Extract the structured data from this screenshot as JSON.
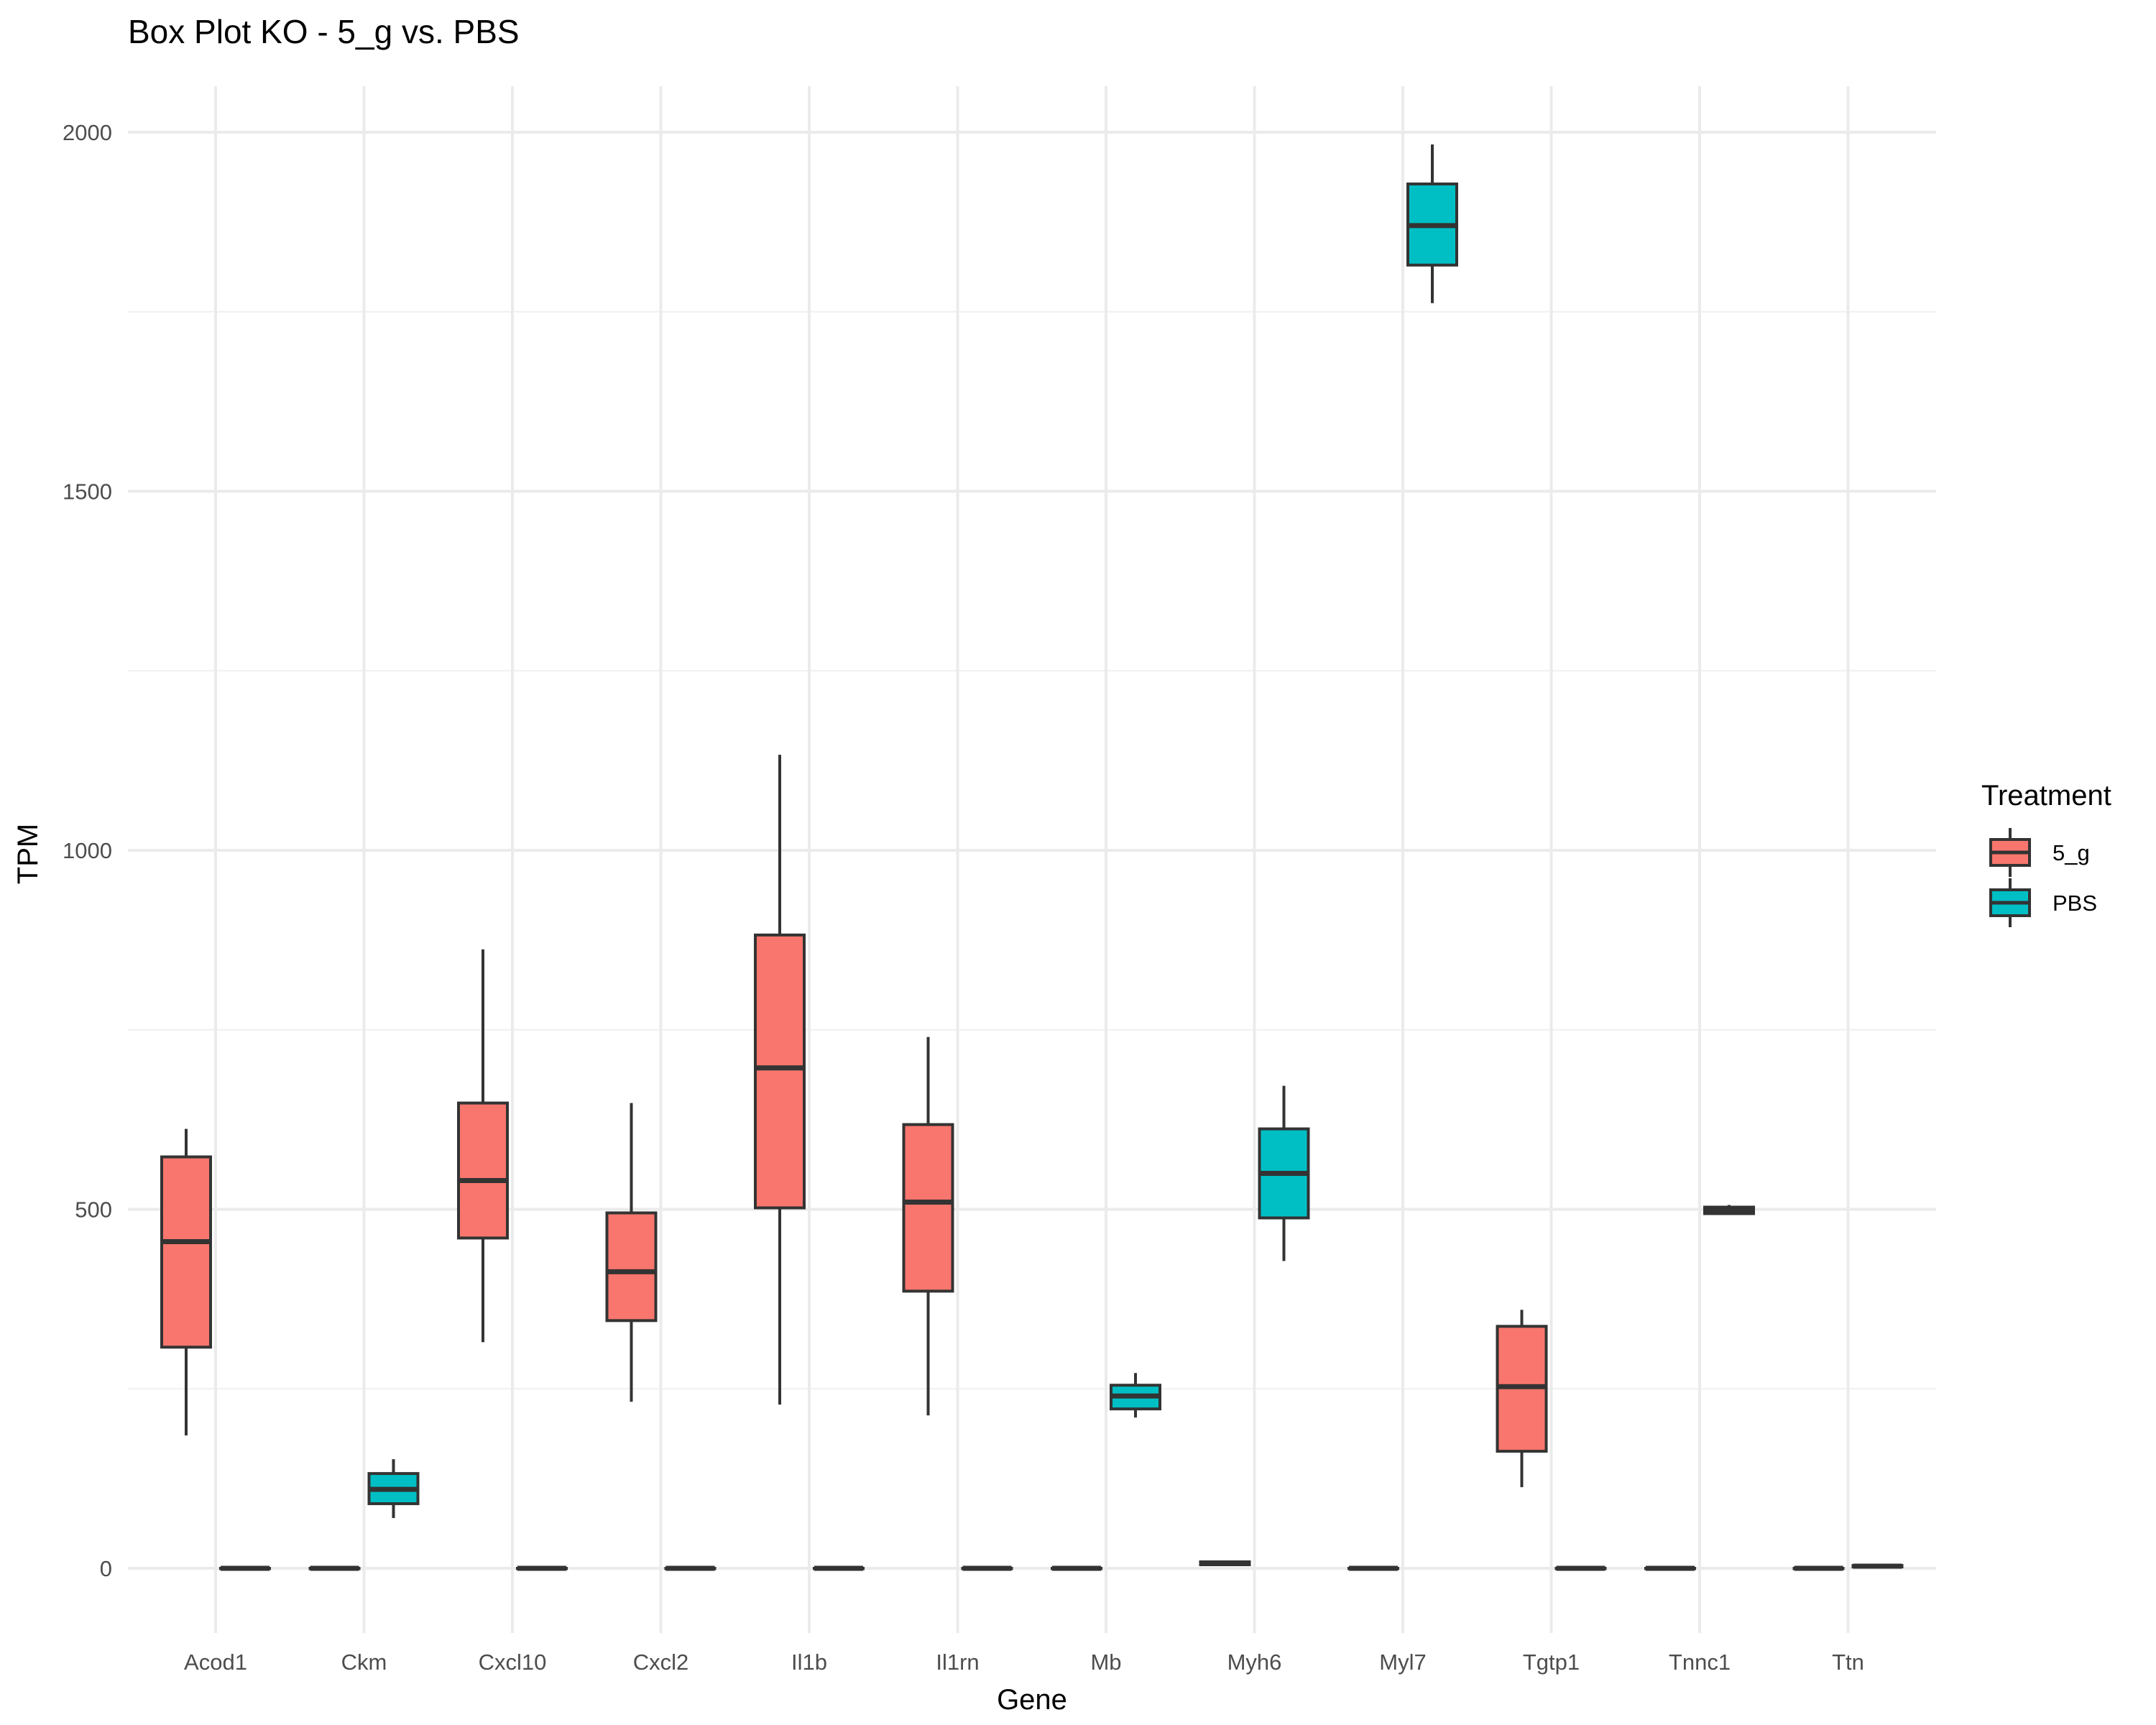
{
  "chart_data": {
    "type": "box",
    "title": "Box Plot KO - 5_g vs. PBS",
    "xlabel": "Gene",
    "ylabel": "TPM",
    "ylim": [
      -100,
      2090
    ],
    "yticks": [
      0,
      500,
      1000,
      1500,
      2000
    ],
    "categories": [
      "Acod1",
      "Ckm",
      "Cxcl10",
      "Cxcl2",
      "Il1b",
      "Il1rn",
      "Mb",
      "Myh6",
      "Myl7",
      "Tgtp1",
      "Tnnc1",
      "Ttn"
    ],
    "legend": {
      "title": "Treatment",
      "position": "right",
      "entries": [
        {
          "name": "5_g",
          "color": "#F8766D"
        },
        {
          "name": "PBS",
          "color": "#00BFC4"
        }
      ]
    },
    "series": [
      {
        "name": "5_g",
        "color": "#F8766D",
        "boxes": [
          {
            "gene": "Acod1",
            "min": 185,
            "q1": 308,
            "median": 455,
            "q3": 573,
            "max": 612
          },
          {
            "gene": "Ckm",
            "min": 0,
            "q1": 0,
            "median": 0,
            "q3": 0,
            "max": 0
          },
          {
            "gene": "Cxcl10",
            "min": 315,
            "q1": 460,
            "median": 540,
            "q3": 648,
            "max": 862
          },
          {
            "gene": "Cxcl2",
            "min": 232,
            "q1": 345,
            "median": 413,
            "q3": 495,
            "max": 648
          },
          {
            "gene": "Il1b",
            "min": 228,
            "q1": 502,
            "median": 697,
            "q3": 882,
            "max": 1133
          },
          {
            "gene": "Il1rn",
            "min": 213,
            "q1": 386,
            "median": 510,
            "q3": 618,
            "max": 740
          },
          {
            "gene": "Mb",
            "min": 0,
            "q1": 0,
            "median": 0,
            "q3": 0,
            "max": 0
          },
          {
            "gene": "Myh6",
            "min": 3,
            "q1": 5,
            "median": 7,
            "q3": 9,
            "max": 11
          },
          {
            "gene": "Myl7",
            "min": 0,
            "q1": 0,
            "median": 0,
            "q3": 0,
            "max": 0
          },
          {
            "gene": "Tgtp1",
            "min": 113,
            "q1": 163,
            "median": 253,
            "q3": 337,
            "max": 360
          },
          {
            "gene": "Tnnc1",
            "min": 0,
            "q1": 0,
            "median": 0,
            "q3": 0,
            "max": 0
          },
          {
            "gene": "Ttn",
            "min": 0,
            "q1": 0,
            "median": 0,
            "q3": 0,
            "max": 0
          }
        ]
      },
      {
        "name": "PBS",
        "color": "#00BFC4",
        "boxes": [
          {
            "gene": "Acod1",
            "min": 0,
            "q1": 0,
            "median": 0,
            "q3": 0,
            "max": 0
          },
          {
            "gene": "Ckm",
            "min": 70,
            "q1": 90,
            "median": 110,
            "q3": 132,
            "max": 152
          },
          {
            "gene": "Cxcl10",
            "min": 0,
            "q1": 0,
            "median": 0,
            "q3": 0,
            "max": 0
          },
          {
            "gene": "Cxcl2",
            "min": 0,
            "q1": 0,
            "median": 0,
            "q3": 0,
            "max": 0
          },
          {
            "gene": "Il1b",
            "min": 0,
            "q1": 0,
            "median": 0,
            "q3": 0,
            "max": 0
          },
          {
            "gene": "Il1rn",
            "min": 0,
            "q1": 0,
            "median": 0,
            "q3": 0,
            "max": 0
          },
          {
            "gene": "Mb",
            "min": 210,
            "q1": 222,
            "median": 240,
            "q3": 255,
            "max": 272
          },
          {
            "gene": "Myh6",
            "min": 428,
            "q1": 488,
            "median": 550,
            "q3": 612,
            "max": 672
          },
          {
            "gene": "Myl7",
            "min": 1762,
            "q1": 1815,
            "median": 1870,
            "q3": 1928,
            "max": 1983
          },
          {
            "gene": "Tgtp1",
            "min": 0,
            "q1": 0,
            "median": 0,
            "q3": 0,
            "max": 0
          },
          {
            "gene": "Tnnc1",
            "min": 492,
            "q1": 494,
            "median": 499,
            "q3": 503,
            "max": 506
          },
          {
            "gene": "Ttn",
            "min": 1,
            "q1": 2,
            "median": 3,
            "q3": 4,
            "max": 5
          }
        ]
      }
    ]
  }
}
